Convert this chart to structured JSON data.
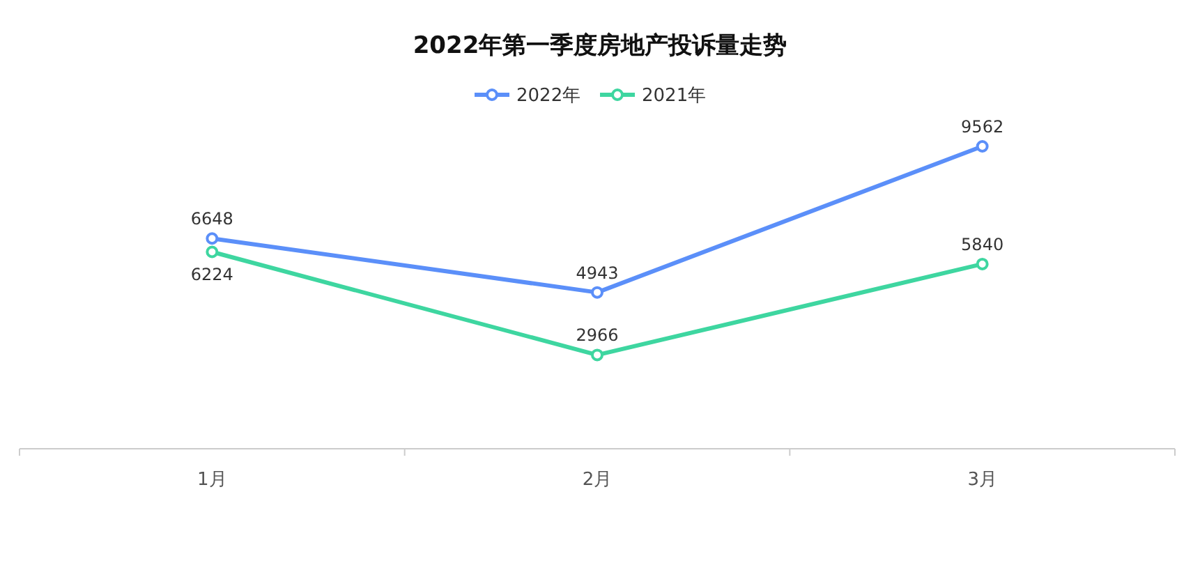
{
  "chart_data": {
    "type": "line",
    "title": "2022年第一季度房地产投诉量走势",
    "categories": [
      "1月",
      "2月",
      "3月"
    ],
    "series": [
      {
        "name": "2022年",
        "color": "#5b8ff9",
        "values": [
          6648,
          4943,
          9562
        ]
      },
      {
        "name": "2021年",
        "color": "#3ed6a0",
        "values": [
          6224,
          2966,
          5840
        ]
      }
    ],
    "data_labels": true,
    "legend": "top",
    "marker": "circle",
    "line_style": "solid",
    "tick_labels": "x"
  }
}
